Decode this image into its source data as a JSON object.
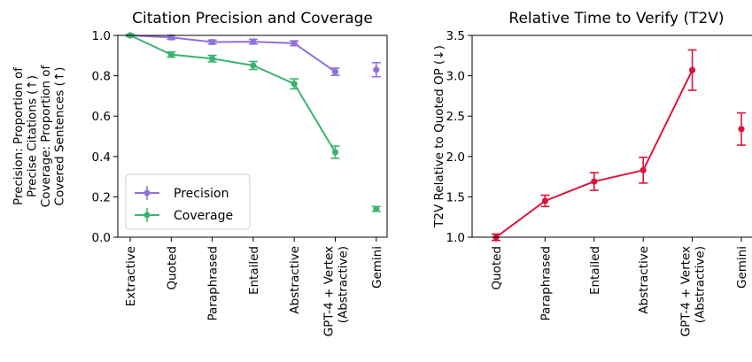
{
  "chart_data": [
    {
      "type": "line",
      "title": "Citation Precision and Coverage",
      "ylabel_lines": [
        "Precision: Proportion of",
        "Precise Citations (↑)",
        "Coverage: Proportion of",
        "Covered Sentences (↑)"
      ],
      "ylim": [
        0.0,
        1.0
      ],
      "yticks": [
        "0.0",
        "0.2",
        "0.4",
        "0.6",
        "0.8",
        "1.0"
      ],
      "categories": [
        [
          "Extractive"
        ],
        [
          "Quoted"
        ],
        [
          "Paraphrased"
        ],
        [
          "Entailed"
        ],
        [
          "Abstractive"
        ],
        [
          "GPT-4 + Vertex",
          "(Abstractive)"
        ],
        [
          "Gemini"
        ]
      ],
      "legend_position": "lower-left",
      "series": [
        {
          "name": "Precision",
          "color": "#9370db",
          "values": [
            1.0,
            0.99,
            0.967,
            0.969,
            0.961,
            0.82,
            0.83
          ],
          "errors": [
            0.005,
            0.01,
            0.01,
            0.012,
            0.012,
            0.018,
            0.035
          ],
          "connected": [
            true,
            true,
            true,
            true,
            true,
            true,
            false
          ]
        },
        {
          "name": "Coverage",
          "color": "#3cb371",
          "values": [
            1.0,
            0.905,
            0.885,
            0.851,
            0.76,
            0.421,
            0.14
          ],
          "errors": [
            0.005,
            0.013,
            0.016,
            0.02,
            0.025,
            0.03,
            0.012
          ],
          "connected": [
            true,
            true,
            true,
            true,
            true,
            true,
            false
          ]
        }
      ]
    },
    {
      "type": "line",
      "title": "Relative Time to Verify (T2V)",
      "ylabel": "T2V Relative to Quoted OP (↓)",
      "ylim": [
        1.0,
        3.5
      ],
      "yticks": [
        "1.0",
        "1.5",
        "2.0",
        "2.5",
        "3.0",
        "3.5"
      ],
      "categories": [
        [
          "Quoted"
        ],
        [
          "Paraphrased"
        ],
        [
          "Entailed"
        ],
        [
          "Abstractive"
        ],
        [
          "GPT-4 + Vertex",
          "(Abstractive)"
        ],
        [
          "Gemini"
        ]
      ],
      "series": [
        {
          "color": "#dc143c",
          "values": [
            1.0,
            1.45,
            1.69,
            1.83,
            3.07,
            2.34
          ],
          "errors": [
            0.04,
            0.07,
            0.11,
            0.16,
            0.25,
            0.2
          ],
          "connected": [
            true,
            true,
            true,
            true,
            true,
            false
          ]
        }
      ]
    }
  ]
}
